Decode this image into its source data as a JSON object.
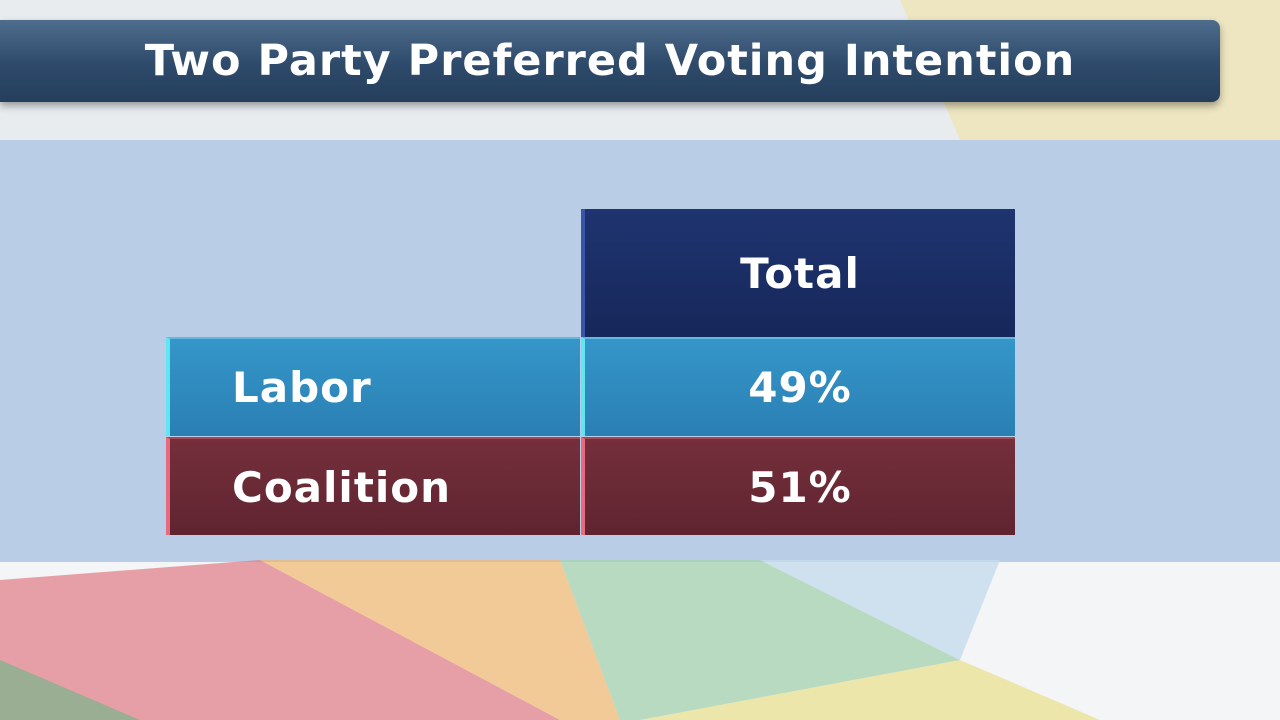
{
  "header": {
    "title": "Two Party Preferred Voting Intention"
  },
  "table": {
    "columns": [
      "Total"
    ],
    "rows": [
      [
        "Labor",
        "49%"
      ],
      [
        "Coalition",
        "51%"
      ]
    ]
  }
}
